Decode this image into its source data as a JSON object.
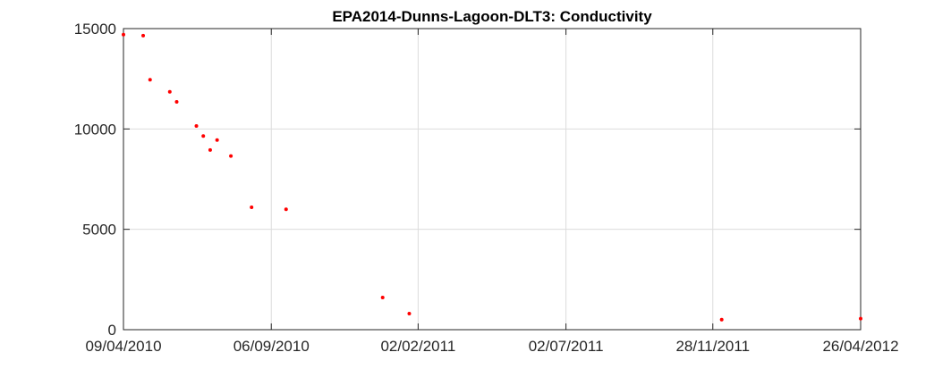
{
  "chart_data": {
    "type": "scatter",
    "title": "EPA2014-Dunns-Lagoon-DLT3: Conductivity",
    "xlabel": "",
    "ylabel": "",
    "x_ticks": [
      "09/04/2010",
      "06/09/2010",
      "02/02/2011",
      "02/07/2011",
      "28/11/2011",
      "26/04/2012"
    ],
    "x_range": [
      "2010-04-09",
      "2012-04-26"
    ],
    "y_ticks": [
      0,
      5000,
      10000,
      15000
    ],
    "ylim": [
      0,
      15000
    ],
    "grid": true,
    "marker_color": "#ff0000",
    "series": [
      {
        "points": [
          {
            "x": "2010-04-09",
            "y": 14700
          },
          {
            "x": "2010-04-29",
            "y": 14650
          },
          {
            "x": "2010-05-06",
            "y": 12450
          },
          {
            "x": "2010-05-26",
            "y": 11850
          },
          {
            "x": "2010-06-02",
            "y": 11350
          },
          {
            "x": "2010-06-22",
            "y": 10150
          },
          {
            "x": "2010-06-29",
            "y": 9650
          },
          {
            "x": "2010-07-06",
            "y": 8950
          },
          {
            "x": "2010-07-13",
            "y": 9450
          },
          {
            "x": "2010-07-27",
            "y": 8650
          },
          {
            "x": "2010-08-17",
            "y": 6100
          },
          {
            "x": "2010-09-21",
            "y": 6000
          },
          {
            "x": "2010-12-28",
            "y": 1600
          },
          {
            "x": "2011-01-24",
            "y": 800
          },
          {
            "x": "2011-12-07",
            "y": 500
          },
          {
            "x": "2012-04-26",
            "y": 550
          }
        ]
      }
    ]
  }
}
